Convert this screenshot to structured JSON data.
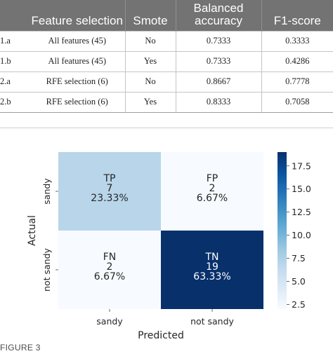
{
  "table": {
    "headers": {
      "id": "",
      "feature_selection": "Feature selection",
      "smote": "Smote",
      "balanced_accuracy": "Balanced accuracy",
      "f1_score": "F1-score"
    },
    "rows": [
      {
        "id": "1.a",
        "feature_selection": "All features (45)",
        "smote": "No",
        "balanced_accuracy": "0.7333",
        "f1_score": "0.3333"
      },
      {
        "id": "1.b",
        "feature_selection": "All features (45)",
        "smote": "Yes",
        "balanced_accuracy": "0.7333",
        "f1_score": "0.4286"
      },
      {
        "id": "2.a",
        "feature_selection": "RFE selection (6)",
        "smote": "No",
        "balanced_accuracy": "0.8667",
        "f1_score": "0.7778"
      },
      {
        "id": "2.b",
        "feature_selection": "RFE selection (6)",
        "smote": "Yes",
        "balanced_accuracy": "0.8333",
        "f1_score": "0.7058"
      }
    ]
  },
  "chart_data": {
    "type": "heatmap",
    "title": "",
    "xlabel": "Predicted",
    "ylabel": "Actual",
    "x_categories": [
      "sandy",
      "not sandy"
    ],
    "y_categories": [
      "sandy",
      "not sandy"
    ],
    "cells": [
      {
        "row": 0,
        "col": 0,
        "label": "TP",
        "count": "7",
        "percent": "23.33%",
        "value": 7
      },
      {
        "row": 0,
        "col": 1,
        "label": "FP",
        "count": "2",
        "percent": "6.67%",
        "value": 2
      },
      {
        "row": 1,
        "col": 0,
        "label": "FN",
        "count": "2",
        "percent": "6.67%",
        "value": 2
      },
      {
        "row": 1,
        "col": 1,
        "label": "TN",
        "count": "19",
        "percent": "63.33%",
        "value": 19
      }
    ],
    "colorbar": {
      "vmin": 2,
      "vmax": 19,
      "ticks": [
        2.5,
        5.0,
        7.5,
        10.0,
        12.5,
        15.0,
        17.5
      ],
      "tick_labels": [
        "2.5",
        "5.0",
        "7.5",
        "10.0",
        "12.5",
        "15.0",
        "17.5"
      ],
      "colormap": "Blues",
      "low_color": "#f7fbff",
      "high_color": "#08306b"
    }
  },
  "figure_label": "FIGURE 3"
}
